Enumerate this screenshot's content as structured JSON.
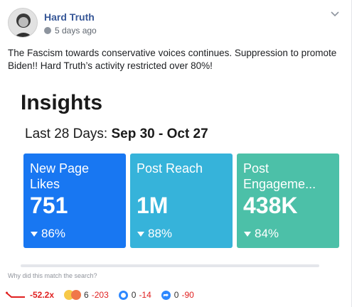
{
  "post": {
    "author": "Hard Truth",
    "timestamp": "5 days ago",
    "text": "The Fascism towards conservative voices continues. Suppression to promote Biden!! Hard Truth’s activity restricted over 80%!"
  },
  "insights": {
    "title": "Insights",
    "range_label": "Last 28 Days:",
    "range_dates": "Sep 30 - Oct 27",
    "tiles": [
      {
        "label": "New Page Likes",
        "value": "751",
        "pct": "86%",
        "color": "#1877f2"
      },
      {
        "label": "Post Reach",
        "value": "1M",
        "pct": "88%",
        "color": "#36b3da"
      },
      {
        "label": "Post Engageme...",
        "value": "438K",
        "pct": "84%",
        "color": "#4cc0a8"
      }
    ]
  },
  "footer": {
    "why_text": "Why did this match the search?",
    "overperform": "-52.2x",
    "reactions_count": "6",
    "reactions_delta": "-203",
    "comments": "0",
    "comments_delta": "-14",
    "shares": "0",
    "shares_delta": "-90"
  },
  "colors": {
    "accent": "#385898",
    "negative": "#e02020"
  }
}
